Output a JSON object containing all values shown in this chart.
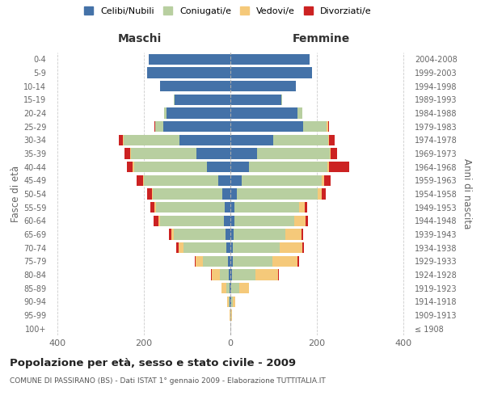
{
  "age_groups": [
    "100+",
    "95-99",
    "90-94",
    "85-89",
    "80-84",
    "75-79",
    "70-74",
    "65-69",
    "60-64",
    "55-59",
    "50-54",
    "45-49",
    "40-44",
    "35-39",
    "30-34",
    "25-29",
    "20-24",
    "15-19",
    "10-14",
    "5-9",
    "0-4"
  ],
  "birth_years": [
    "≤ 1908",
    "1909-1913",
    "1914-1918",
    "1919-1923",
    "1924-1928",
    "1929-1933",
    "1934-1938",
    "1939-1943",
    "1944-1948",
    "1949-1953",
    "1954-1958",
    "1959-1963",
    "1964-1968",
    "1969-1973",
    "1974-1978",
    "1979-1983",
    "1984-1988",
    "1989-1993",
    "1994-1998",
    "1999-2003",
    "2004-2008"
  ],
  "males_celibe": [
    0,
    0,
    1,
    2,
    3,
    5,
    10,
    12,
    15,
    14,
    18,
    28,
    55,
    78,
    118,
    155,
    148,
    128,
    162,
    192,
    188
  ],
  "males_coniugato": [
    0,
    0,
    3,
    8,
    22,
    58,
    98,
    118,
    148,
    158,
    162,
    172,
    168,
    152,
    128,
    18,
    5,
    2,
    0,
    0,
    0
  ],
  "males_vedovo": [
    0,
    1,
    3,
    10,
    18,
    18,
    12,
    6,
    4,
    3,
    2,
    2,
    2,
    2,
    2,
    1,
    0,
    0,
    0,
    0,
    0
  ],
  "males_divorziato": [
    0,
    0,
    0,
    0,
    1,
    2,
    5,
    5,
    10,
    10,
    10,
    14,
    14,
    12,
    10,
    2,
    0,
    0,
    0,
    0,
    0
  ],
  "females_nubile": [
    0,
    0,
    1,
    2,
    3,
    5,
    6,
    8,
    10,
    10,
    14,
    26,
    42,
    62,
    98,
    168,
    155,
    118,
    152,
    188,
    182
  ],
  "females_coniugata": [
    0,
    1,
    4,
    18,
    55,
    92,
    108,
    118,
    138,
    148,
    188,
    185,
    182,
    168,
    128,
    55,
    12,
    2,
    0,
    0,
    0
  ],
  "females_vedova": [
    0,
    2,
    6,
    22,
    52,
    58,
    52,
    38,
    26,
    14,
    8,
    5,
    3,
    2,
    2,
    2,
    0,
    0,
    0,
    0,
    0
  ],
  "females_divorziata": [
    0,
    0,
    0,
    1,
    2,
    4,
    4,
    4,
    6,
    6,
    10,
    16,
    48,
    14,
    12,
    2,
    0,
    0,
    0,
    0,
    0
  ],
  "color_celibe": "#4472a8",
  "color_coniugato": "#b8cfa0",
  "color_vedovo": "#f5c97a",
  "color_divorziato": "#cc2222",
  "xlim": 420,
  "title": "Popolazione per età, sesso e stato civile - 2009",
  "subtitle": "COMUNE DI PASSIRANO (BS) - Dati ISTAT 1° gennaio 2009 - Elaborazione TUTTITALIA.IT",
  "ylabel_left": "Fasce di età",
  "ylabel_right": "Anni di nascita",
  "label_maschi": "Maschi",
  "label_femmine": "Femmine",
  "legend_labels": [
    "Celibi/Nubili",
    "Coniugati/e",
    "Vedovi/e",
    "Divorziati/e"
  ],
  "bg_color": "#ffffff",
  "grid_color": "#cccccc",
  "tick_color": "#666666"
}
